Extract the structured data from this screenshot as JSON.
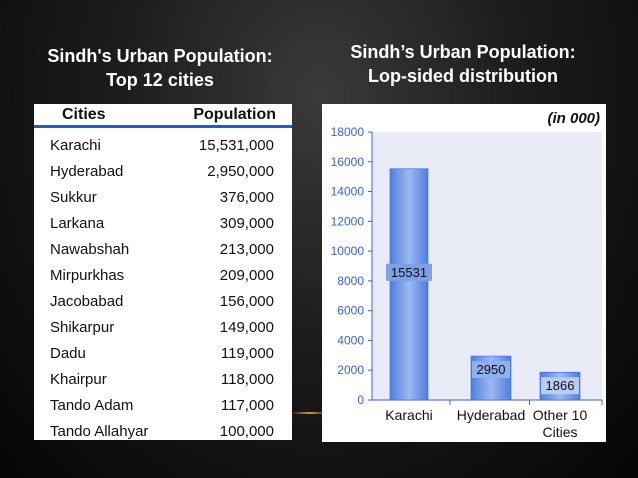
{
  "left_title": {
    "line1": "Sindh's Urban Population:",
    "line2": "Top 12 cities"
  },
  "right_title": {
    "line1": "Sindh’s Urban Population:",
    "line2": "Lop-sided distribution"
  },
  "table": {
    "headers": {
      "city": "Cities",
      "population": "Population"
    },
    "rows": [
      {
        "city": "Karachi",
        "population": "15,531,000"
      },
      {
        "city": "Hyderabad",
        "population": "2,950,000"
      },
      {
        "city": "Sukkur",
        "population": "376,000"
      },
      {
        "city": "Larkana",
        "population": "309,000"
      },
      {
        "city": "Nawabshah",
        "population": "213,000"
      },
      {
        "city": "Mirpurkhas",
        "population": "209,000"
      },
      {
        "city": "Jacobabad",
        "population": "156,000"
      },
      {
        "city": "Shikarpur",
        "population": "149,000"
      },
      {
        "city": "Dadu",
        "population": "119,000"
      },
      {
        "city": "Khairpur",
        "population": "118,000"
      },
      {
        "city": "Tando Adam",
        "population": "117,000"
      },
      {
        "city": "Tando Allahyar",
        "population": "100,000"
      }
    ]
  },
  "chart_data": {
    "type": "bar",
    "unit_note": "(in 000)",
    "categories": [
      "Karachi",
      "Hyderabad",
      "Other 10 Cities"
    ],
    "category_lines": [
      [
        "Karachi"
      ],
      [
        "Hyderabad"
      ],
      [
        "Other 10",
        "Cities"
      ]
    ],
    "values": [
      15531,
      2950,
      1866
    ],
    "data_labels": [
      "15531",
      "2950",
      "1866"
    ],
    "ylim": [
      0,
      18000
    ],
    "yticks": [
      0,
      2000,
      4000,
      6000,
      8000,
      10000,
      12000,
      14000,
      16000,
      18000
    ],
    "bar_color": "#4f7fe0",
    "bar_highlight": "#9cb8f0",
    "plot_background": "#e9ebf6",
    "axis_color": "#3b63d6",
    "grid": false
  }
}
